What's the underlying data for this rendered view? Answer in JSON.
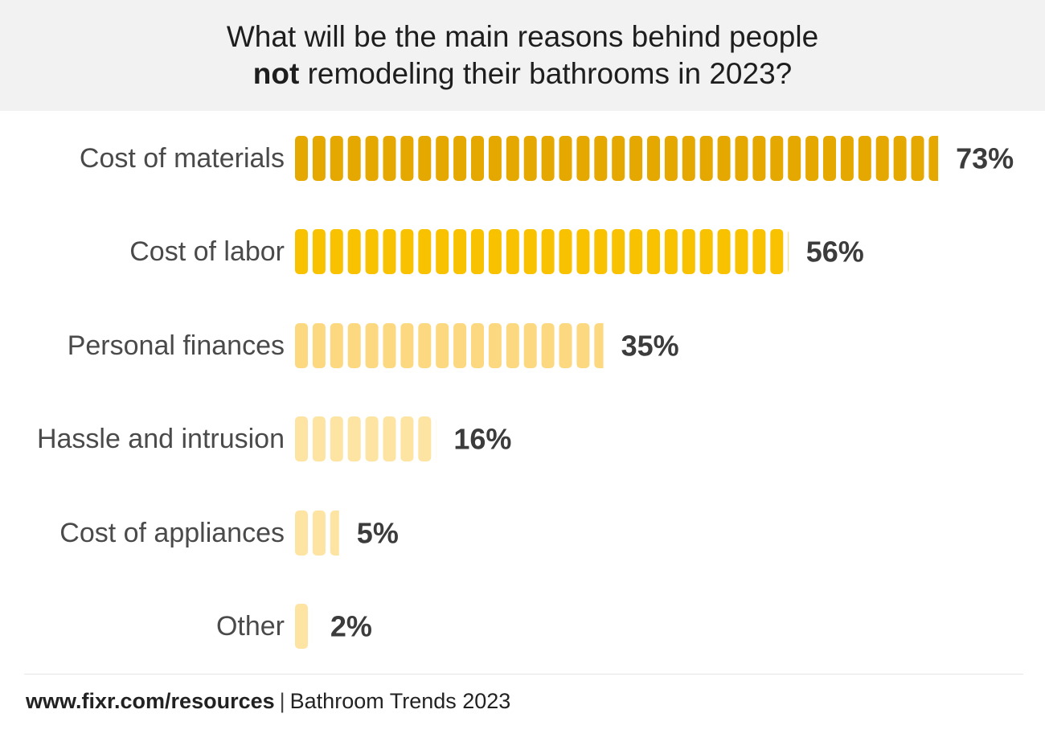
{
  "header": {
    "title_line1": "What will be the main reasons behind people",
    "title_bold_word": "not",
    "title_line2_rest": " remodeling their bathrooms in 2023?"
  },
  "chart_data": {
    "type": "bar",
    "orientation": "horizontal",
    "categories": [
      "Cost of materials",
      "Cost of labor",
      "Personal finances",
      "Hassle and intrusion",
      "Cost of appliances",
      "Other"
    ],
    "values": [
      73,
      56,
      35,
      16,
      5,
      2
    ],
    "value_labels": [
      "73%",
      "56%",
      "35%",
      "16%",
      "5%",
      "2%"
    ],
    "unit": "%",
    "title": "What will be the main reasons behind people not remodeling their bathrooms in 2023?",
    "grid": false,
    "legend": "none",
    "colors": [
      "#e5a800",
      "#f8c200",
      "#fcd980",
      "#fde4a3",
      "#fde4a3",
      "#fde4a3"
    ],
    "label_color": "#3c3c3c",
    "category_label_color": "#4a4a4a"
  },
  "footer": {
    "url": "www.fixr.com/resources",
    "separator": "|",
    "source": "Bathroom Trends 2023"
  }
}
